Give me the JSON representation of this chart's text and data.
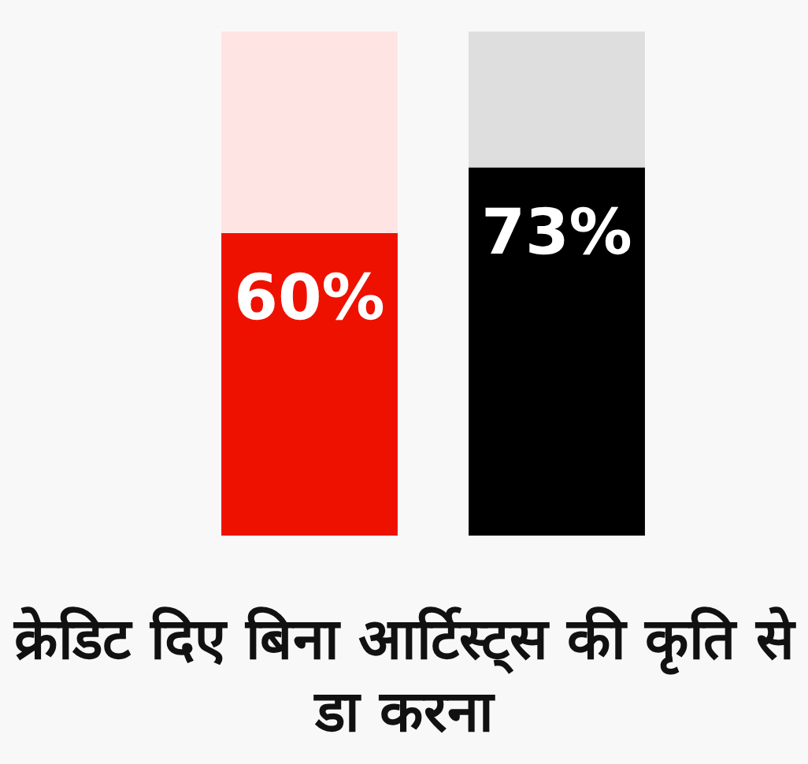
{
  "chart_data": {
    "type": "bar",
    "title": "क्रेडिट दिए बिना आर्टिस्ट्स की कृति से डा करना",
    "categories": [
      null,
      null
    ],
    "stacked": true,
    "ylim": [
      0,
      100
    ],
    "series": [
      {
        "colors": [
          "#ee1100",
          "#000000"
        ],
        "values": [
          60,
          73
        ],
        "value_labels": [
          "60%",
          "73%"
        ]
      },
      {
        "colors": [
          "#ffe4e4",
          "#dedede"
        ],
        "values": [
          40,
          27
        ]
      }
    ]
  }
}
